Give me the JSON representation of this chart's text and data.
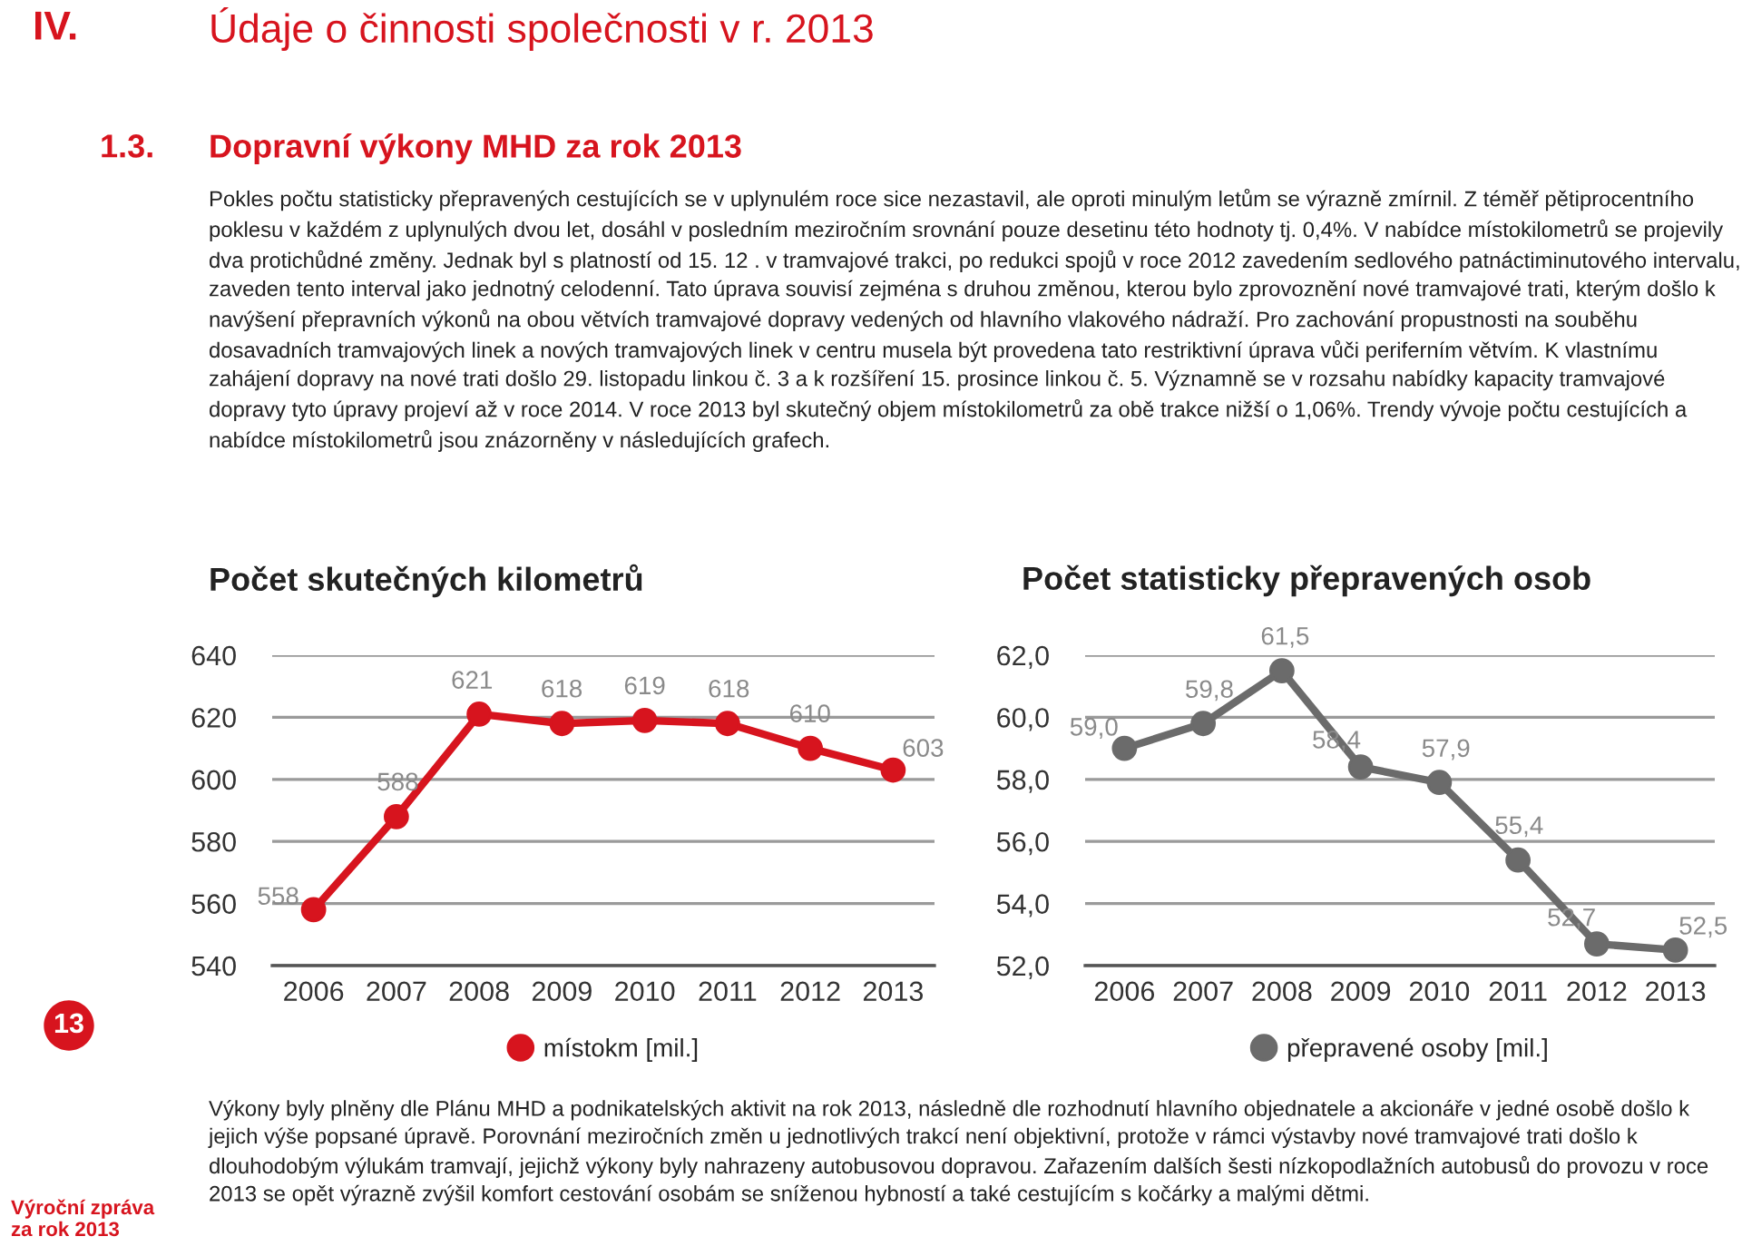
{
  "chart_data": [
    {
      "type": "line",
      "title": "Počet skutečných kilometrů",
      "categories": [
        "2006",
        "2007",
        "2008",
        "2009",
        "2010",
        "2011",
        "2012",
        "2013"
      ],
      "series": [
        {
          "name": "místokm [mil.]",
          "color": "#d7141e",
          "values": [
            558,
            588,
            621,
            618,
            619,
            618,
            610,
            603
          ]
        }
      ],
      "ylim": [
        540,
        640
      ],
      "yticks": [
        540,
        560,
        580,
        600,
        620,
        640
      ],
      "grid": "y",
      "legend": "bottom",
      "marker": "circle",
      "line_style": "solid",
      "data_labels": true,
      "annotations": [
        "IV.",
        "Údaje o činnosti společnosti v r. 2013",
        "1.3.",
        "Dopravní výkony MHD za rok 2013",
        "Pokles počtu statisticky přepravených cestujících se v uplynulém roce sice nezastavil, ale oproti minulým letům se výrazně zmírnil. Z téměř pětiprocentního poklesu v každém z uplynulých dvou let, dosáhl v posledním meziročním srovnání pouze desetinu této hodnoty tj. 0,4%. V nabídce místokilometrů se projevily dva protichůdné změny. Jednak byl s platností od 15. 12 . v tramvajové trakci, po redukci spojů v roce 2012 zavedením sedlového patnáctiminutového intervalu, zaveden tento interval jako jednotný celodenní. Tato úprava souvisí zejména s druhou změnou, kterou bylo zprovoznění nové tramvajové trati, kterým došlo k navýšení přepravních výkonů na obou větvích tramvajové dopravy vedených od hlavního vlakového nádraží. Pro zachování propustnosti na souběhu dosavadních tramvajových linek a nových tramvajových linek v centru musela být provedena tato restriktivní úprava vůči periferním větvím. K vlastnímu zahájení dopravy na nové trati došlo 29. listopadu linkou č. 3 a k rozšíření 15. prosince linkou č. 5. Významně se v rozsahu nabídky kapacity tramvajové dopravy tyto úpravy projeví až v roce 2014. V roce 2013 byl skutečný objem místokilometrů za obě trakce nižší o 1,06%. Trendy vývoje počtu cestujících a nabídce místokilometrů jsou znázorněny v následujících grafech."
      ]
    },
    {
      "type": "line",
      "title": "Počet statisticky přepravených osob",
      "categories": [
        "2006",
        "2007",
        "2008",
        "2009",
        "2010",
        "2011",
        "2012",
        "2013"
      ],
      "series": [
        {
          "name": "přepravené osoby [mil.]",
          "color": "#6b6b6b",
          "values": [
            59.0,
            59.8,
            61.5,
            58.4,
            57.9,
            55.4,
            52.7,
            52.5
          ],
          "value_labels": [
            "59,0",
            "59,8",
            "61,5",
            "58,4",
            "57,9",
            "55,4",
            "52,7",
            "52,5"
          ]
        }
      ],
      "ylim": [
        52,
        62
      ],
      "yticks": [
        {
          "value": 52,
          "label": "52,0"
        },
        {
          "value": 54,
          "label": "54,0"
        },
        {
          "value": 56,
          "label": "56,0"
        },
        {
          "value": 58,
          "label": "58,0"
        },
        {
          "value": 60,
          "label": "60,0"
        },
        {
          "value": 62,
          "label": "62,0"
        }
      ],
      "grid": "y",
      "legend": "bottom",
      "marker": "circle",
      "line_style": "solid",
      "annotations": [
        "Výkony byly plněny dle Plánu MHD a podnikatelských aktivit na rok 2013, následně dle rozhodnutí hlavního objednatele a akcionáře v jedné osobě došlo k jejich výše popsané úpravě. Porovnání meziročních změn u jednotlivých trakcí není objektivní, protože v rámci výstavby nové tramvajové trati došlo k dlouhodobým výlukám tramvají, jejichž výkony byly nahrazeny autobusovou dopravou. Zařazením dalších šesti nízkopodlažních autobusů do provozu v roce 2013 se opět výrazně zvýšil komfort cestování osobám se sníženou hybností a také cestujícím s kočárky a malými dětmi.",
        "13",
        "Výroční zpráva\nza rok 2013"
      ]
    }
  ]
}
